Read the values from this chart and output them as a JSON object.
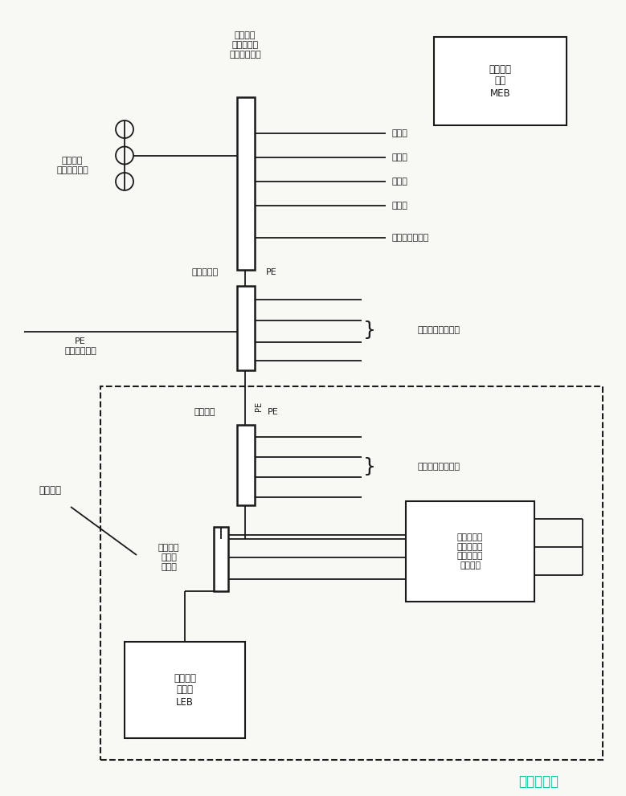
{
  "bg_color": "#f8f8f5",
  "line_color": "#1a1a1a",
  "text_color": "#1a1a1a",
  "fig_width": 7.79,
  "fig_height": 9.91,
  "top_bus_label": "接地母排\n（总等电位\n联结端子板）",
  "meb_box_text": "总等电位\n联结\nMEB",
  "ground_label": "接地极或\n其它接地措施",
  "right_labels_top": [
    "上水管",
    "下水管",
    "煮气管",
    "暖气管",
    "建筑物金属结构"
  ],
  "incoming_label": "进线配电筱",
  "pe_label1": "PE",
  "pe_left_label": "PE\n（假如有时）",
  "to_devices_top": "至用电设备及插座",
  "local_area_label": "局部场所",
  "sub_panel_label": "分配电筱",
  "pe_label2": "PE",
  "to_devices_bottom": "至用电设备及插座",
  "local_bond_label": "局部等电\n位联结\n端子板",
  "metal_box_text": "至电气装置\n外的金属管\n道及建筑物\n金属结构",
  "leb_box_text": "局部等电\n位联结\nLEB",
  "watermark": "自动秒链接",
  "pe_vertical_label": "PE"
}
